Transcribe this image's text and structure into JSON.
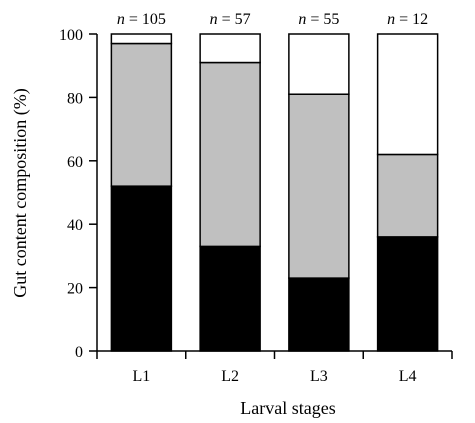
{
  "chart_data": {
    "type": "bar",
    "stacked": true,
    "categories": [
      "L1",
      "L2",
      "L3",
      "L4"
    ],
    "sample_sizes": [
      "105",
      "57",
      "55",
      "12"
    ],
    "n_prefix": "n",
    "series": [
      {
        "color": "#000000",
        "values": [
          52,
          33,
          23,
          36
        ]
      },
      {
        "color": "#c0c0c0",
        "values": [
          45,
          58,
          58,
          26
        ]
      },
      {
        "color": "#ffffff",
        "values": [
          3,
          9,
          19,
          38
        ]
      }
    ],
    "xlabel": "Larval stages",
    "ylabel": "Gut content composition (%)",
    "ylim": [
      0,
      100
    ],
    "yticks": [
      0,
      20,
      40,
      60,
      80,
      100
    ],
    "grid": false
  }
}
